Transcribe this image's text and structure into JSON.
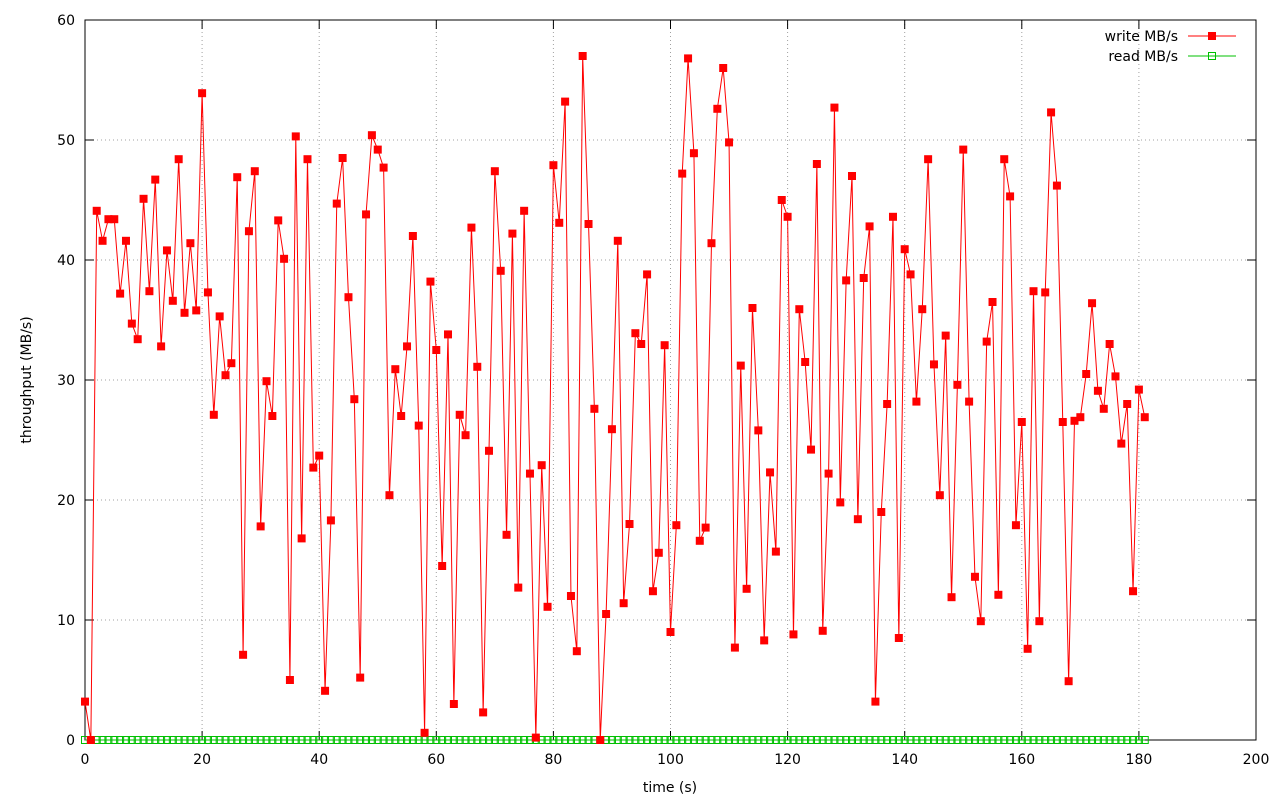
{
  "chart_data": {
    "type": "line",
    "xlabel": "time (s)",
    "ylabel": "throughput (MB/s)",
    "xlim": [
      0,
      200
    ],
    "xticks": [
      0,
      20,
      40,
      60,
      80,
      100,
      120,
      140,
      160,
      180,
      200
    ],
    "ylim": [
      0,
      60
    ],
    "yticks": [
      0,
      10,
      20,
      30,
      40,
      50,
      60
    ],
    "grid": true,
    "legend": "top-right",
    "x": [
      0,
      1,
      2,
      3,
      4,
      5,
      6,
      7,
      8,
      9,
      10,
      11,
      12,
      13,
      14,
      15,
      16,
      17,
      18,
      19,
      20,
      21,
      22,
      23,
      24,
      25,
      26,
      27,
      28,
      29,
      30,
      31,
      32,
      33,
      34,
      35,
      36,
      37,
      38,
      39,
      40,
      41,
      42,
      43,
      44,
      45,
      46,
      47,
      48,
      49,
      50,
      51,
      52,
      53,
      54,
      55,
      56,
      57,
      58,
      59,
      60,
      61,
      62,
      63,
      64,
      65,
      66,
      67,
      68,
      69,
      70,
      71,
      72,
      73,
      74,
      75,
      76,
      77,
      78,
      79,
      80,
      81,
      82,
      83,
      84,
      85,
      86,
      87,
      88,
      89,
      90,
      91,
      92,
      93,
      94,
      95,
      96,
      97,
      98,
      99,
      100,
      101,
      102,
      103,
      104,
      105,
      106,
      107,
      108,
      109,
      110,
      111,
      112,
      113,
      114,
      115,
      116,
      117,
      118,
      119,
      120,
      121,
      122,
      123,
      124,
      125,
      126,
      127,
      128,
      129,
      130,
      131,
      132,
      133,
      134,
      135,
      136,
      137,
      138,
      139,
      140,
      141,
      142,
      143,
      144,
      145,
      146,
      147,
      148,
      149,
      150,
      151,
      152,
      153,
      154,
      155,
      156,
      157,
      158,
      159,
      160,
      161,
      162,
      163,
      164,
      165,
      166,
      167,
      168,
      169,
      170,
      171,
      172,
      173,
      174,
      175,
      176,
      177,
      178,
      179,
      180,
      181
    ],
    "series": [
      {
        "name": "write MB/s",
        "color": "#ff0000",
        "marker": "filled-square",
        "values": [
          3.2,
          0,
          44.1,
          41.6,
          43.4,
          43.4,
          37.2,
          41.6,
          34.7,
          33.4,
          45.1,
          37.4,
          46.7,
          32.8,
          40.8,
          36.6,
          48.4,
          35.6,
          41.4,
          35.8,
          53.9,
          37.3,
          27.1,
          35.3,
          30.4,
          31.4,
          46.9,
          7.1,
          42.4,
          47.4,
          17.8,
          29.9,
          27.0,
          43.3,
          40.1,
          5.0,
          50.3,
          16.8,
          48.4,
          22.7,
          23.7,
          4.1,
          18.3,
          44.7,
          48.5,
          36.9,
          28.4,
          5.2,
          43.8,
          50.4,
          49.2,
          47.7,
          20.4,
          30.9,
          27.0,
          32.8,
          42.0,
          26.2,
          0.6,
          38.2,
          32.5,
          14.5,
          33.8,
          3.0,
          27.1,
          25.4,
          42.7,
          31.1,
          2.3,
          24.1,
          47.4,
          39.1,
          17.1,
          42.2,
          12.7,
          44.1,
          22.2,
          0.2,
          22.9,
          11.1,
          47.9,
          43.1,
          53.2,
          12.0,
          7.4,
          57.0,
          43.0,
          27.6,
          0,
          10.5,
          25.9,
          41.6,
          11.4,
          18.0,
          33.9,
          33.0,
          38.8,
          12.4,
          15.6,
          32.9,
          9.0,
          17.9,
          47.2,
          56.8,
          48.9,
          16.6,
          17.7,
          41.4,
          52.6,
          56.0,
          49.8,
          7.7,
          31.2,
          12.6,
          36.0,
          25.8,
          8.3,
          22.3,
          15.7,
          45.0,
          43.6,
          8.8,
          35.9,
          31.5,
          24.2,
          48.0,
          9.1,
          22.2,
          52.7,
          19.8,
          38.3,
          47.0,
          18.4,
          38.5,
          42.8,
          3.2,
          19.0,
          28.0,
          43.6,
          8.5,
          40.9,
          38.8,
          28.2,
          35.9,
          48.4,
          31.3,
          20.4,
          33.7,
          11.9,
          29.6,
          49.2,
          28.2,
          13.6,
          9.9,
          33.2,
          36.5,
          12.1,
          48.4,
          45.3,
          17.9,
          26.5,
          7.6,
          37.4,
          9.9,
          37.3,
          52.3,
          46.2,
          26.5,
          4.9,
          26.6,
          26.9,
          30.5,
          36.4,
          29.1,
          27.6,
          33.0,
          30.3,
          24.7,
          28.0,
          12.4,
          29.2,
          26.9
        ]
      },
      {
        "name": "read MB/s",
        "color": "#00c000",
        "marker": "open-square",
        "values": [
          0,
          0,
          0,
          0,
          0,
          0,
          0,
          0,
          0,
          0,
          0,
          0,
          0,
          0,
          0,
          0,
          0,
          0,
          0,
          0,
          0,
          0,
          0,
          0,
          0,
          0,
          0,
          0,
          0,
          0,
          0,
          0,
          0,
          0,
          0,
          0,
          0,
          0,
          0,
          0,
          0,
          0,
          0,
          0,
          0,
          0,
          0,
          0,
          0,
          0,
          0,
          0,
          0,
          0,
          0,
          0,
          0,
          0,
          0,
          0,
          0,
          0,
          0,
          0,
          0,
          0,
          0,
          0,
          0,
          0,
          0,
          0,
          0,
          0,
          0,
          0,
          0,
          0,
          0,
          0,
          0,
          0,
          0,
          0,
          0,
          0,
          0,
          0,
          0,
          0,
          0,
          0,
          0,
          0,
          0,
          0,
          0,
          0,
          0,
          0,
          0,
          0,
          0,
          0,
          0,
          0,
          0,
          0,
          0,
          0,
          0,
          0,
          0,
          0,
          0,
          0,
          0,
          0,
          0,
          0,
          0,
          0,
          0,
          0,
          0,
          0,
          0,
          0,
          0,
          0,
          0,
          0,
          0,
          0,
          0,
          0,
          0,
          0,
          0,
          0,
          0,
          0,
          0,
          0,
          0,
          0,
          0,
          0,
          0,
          0,
          0,
          0,
          0,
          0,
          0,
          0,
          0,
          0,
          0,
          0,
          0,
          0,
          0,
          0,
          0,
          0,
          0,
          0,
          0,
          0,
          0,
          0,
          0,
          0,
          0,
          0,
          0,
          0,
          0,
          0,
          0,
          0
        ]
      }
    ]
  }
}
